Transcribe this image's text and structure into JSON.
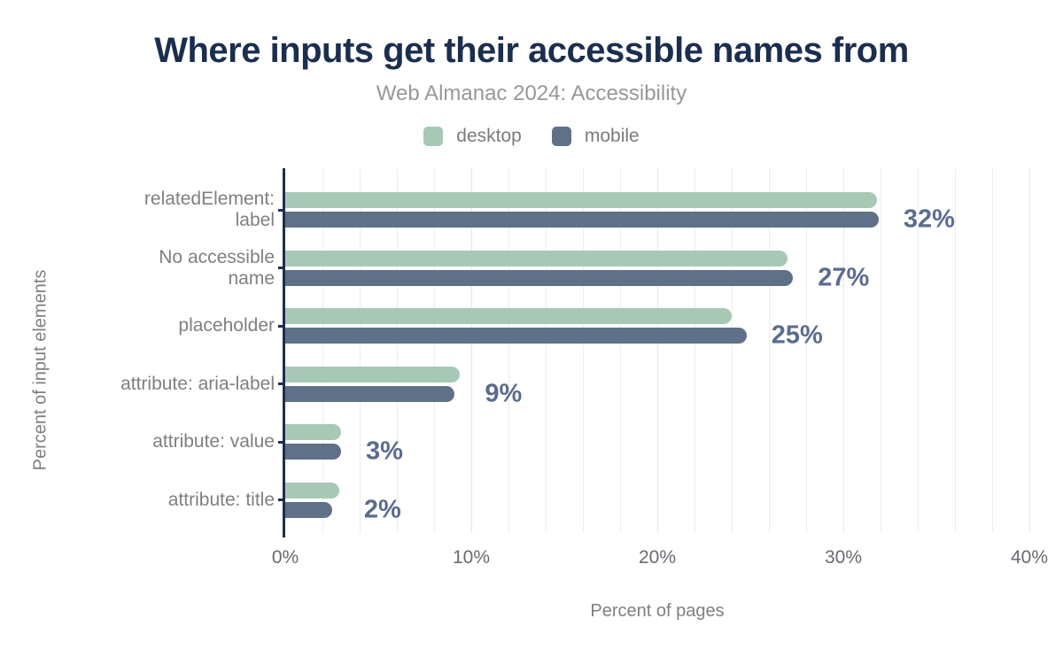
{
  "chart_data": {
    "type": "bar",
    "orientation": "horizontal",
    "title": "Where inputs get their accessible names from",
    "subtitle": "Web Almanac 2024: Accessibility",
    "xlabel": "Percent of pages",
    "ylabel": "Percent of input elements",
    "xlim": [
      0,
      40
    ],
    "x_tick_values": [
      0,
      10,
      20,
      30,
      40
    ],
    "x_tick_labels": [
      "0%",
      "10%",
      "20%",
      "30%",
      "40%"
    ],
    "grid": {
      "vertical": true,
      "interval_pct": 2,
      "horizontal": false
    },
    "legend_position": "top",
    "categories": [
      "relatedElement: label",
      "No accessible name",
      "placeholder",
      "attribute: aria-label",
      "attribute: value",
      "attribute: title"
    ],
    "category_label_lines": [
      [
        "relatedElement:",
        "label"
      ],
      [
        "No accessible",
        "name"
      ],
      [
        "placeholder"
      ],
      [
        "attribute: aria-label"
      ],
      [
        "attribute: value"
      ],
      [
        "attribute: title"
      ]
    ],
    "series": [
      {
        "name": "desktop",
        "color": "#a8c8b6",
        "values": [
          31.8,
          27.0,
          24.0,
          9.4,
          3.0,
          2.9
        ]
      },
      {
        "name": "mobile",
        "color": "#5f7089",
        "values": [
          31.9,
          27.3,
          24.8,
          9.1,
          3.0,
          2.5
        ]
      }
    ],
    "value_labels": [
      "32%",
      "27%",
      "25%",
      "9%",
      "3%",
      "2%"
    ],
    "colors": {
      "title": "#1b2e4f",
      "subtitle": "#97979c",
      "axis_line": "#1b2e4f",
      "value_label": "#5a6c8e",
      "category_label": "#7f7f7f",
      "tick_label": "#6a6a70",
      "axis_title": "#7f7f7f",
      "legend_label": "#7b7b7b",
      "gridline": "#ededed",
      "background": "#ffffff"
    }
  }
}
